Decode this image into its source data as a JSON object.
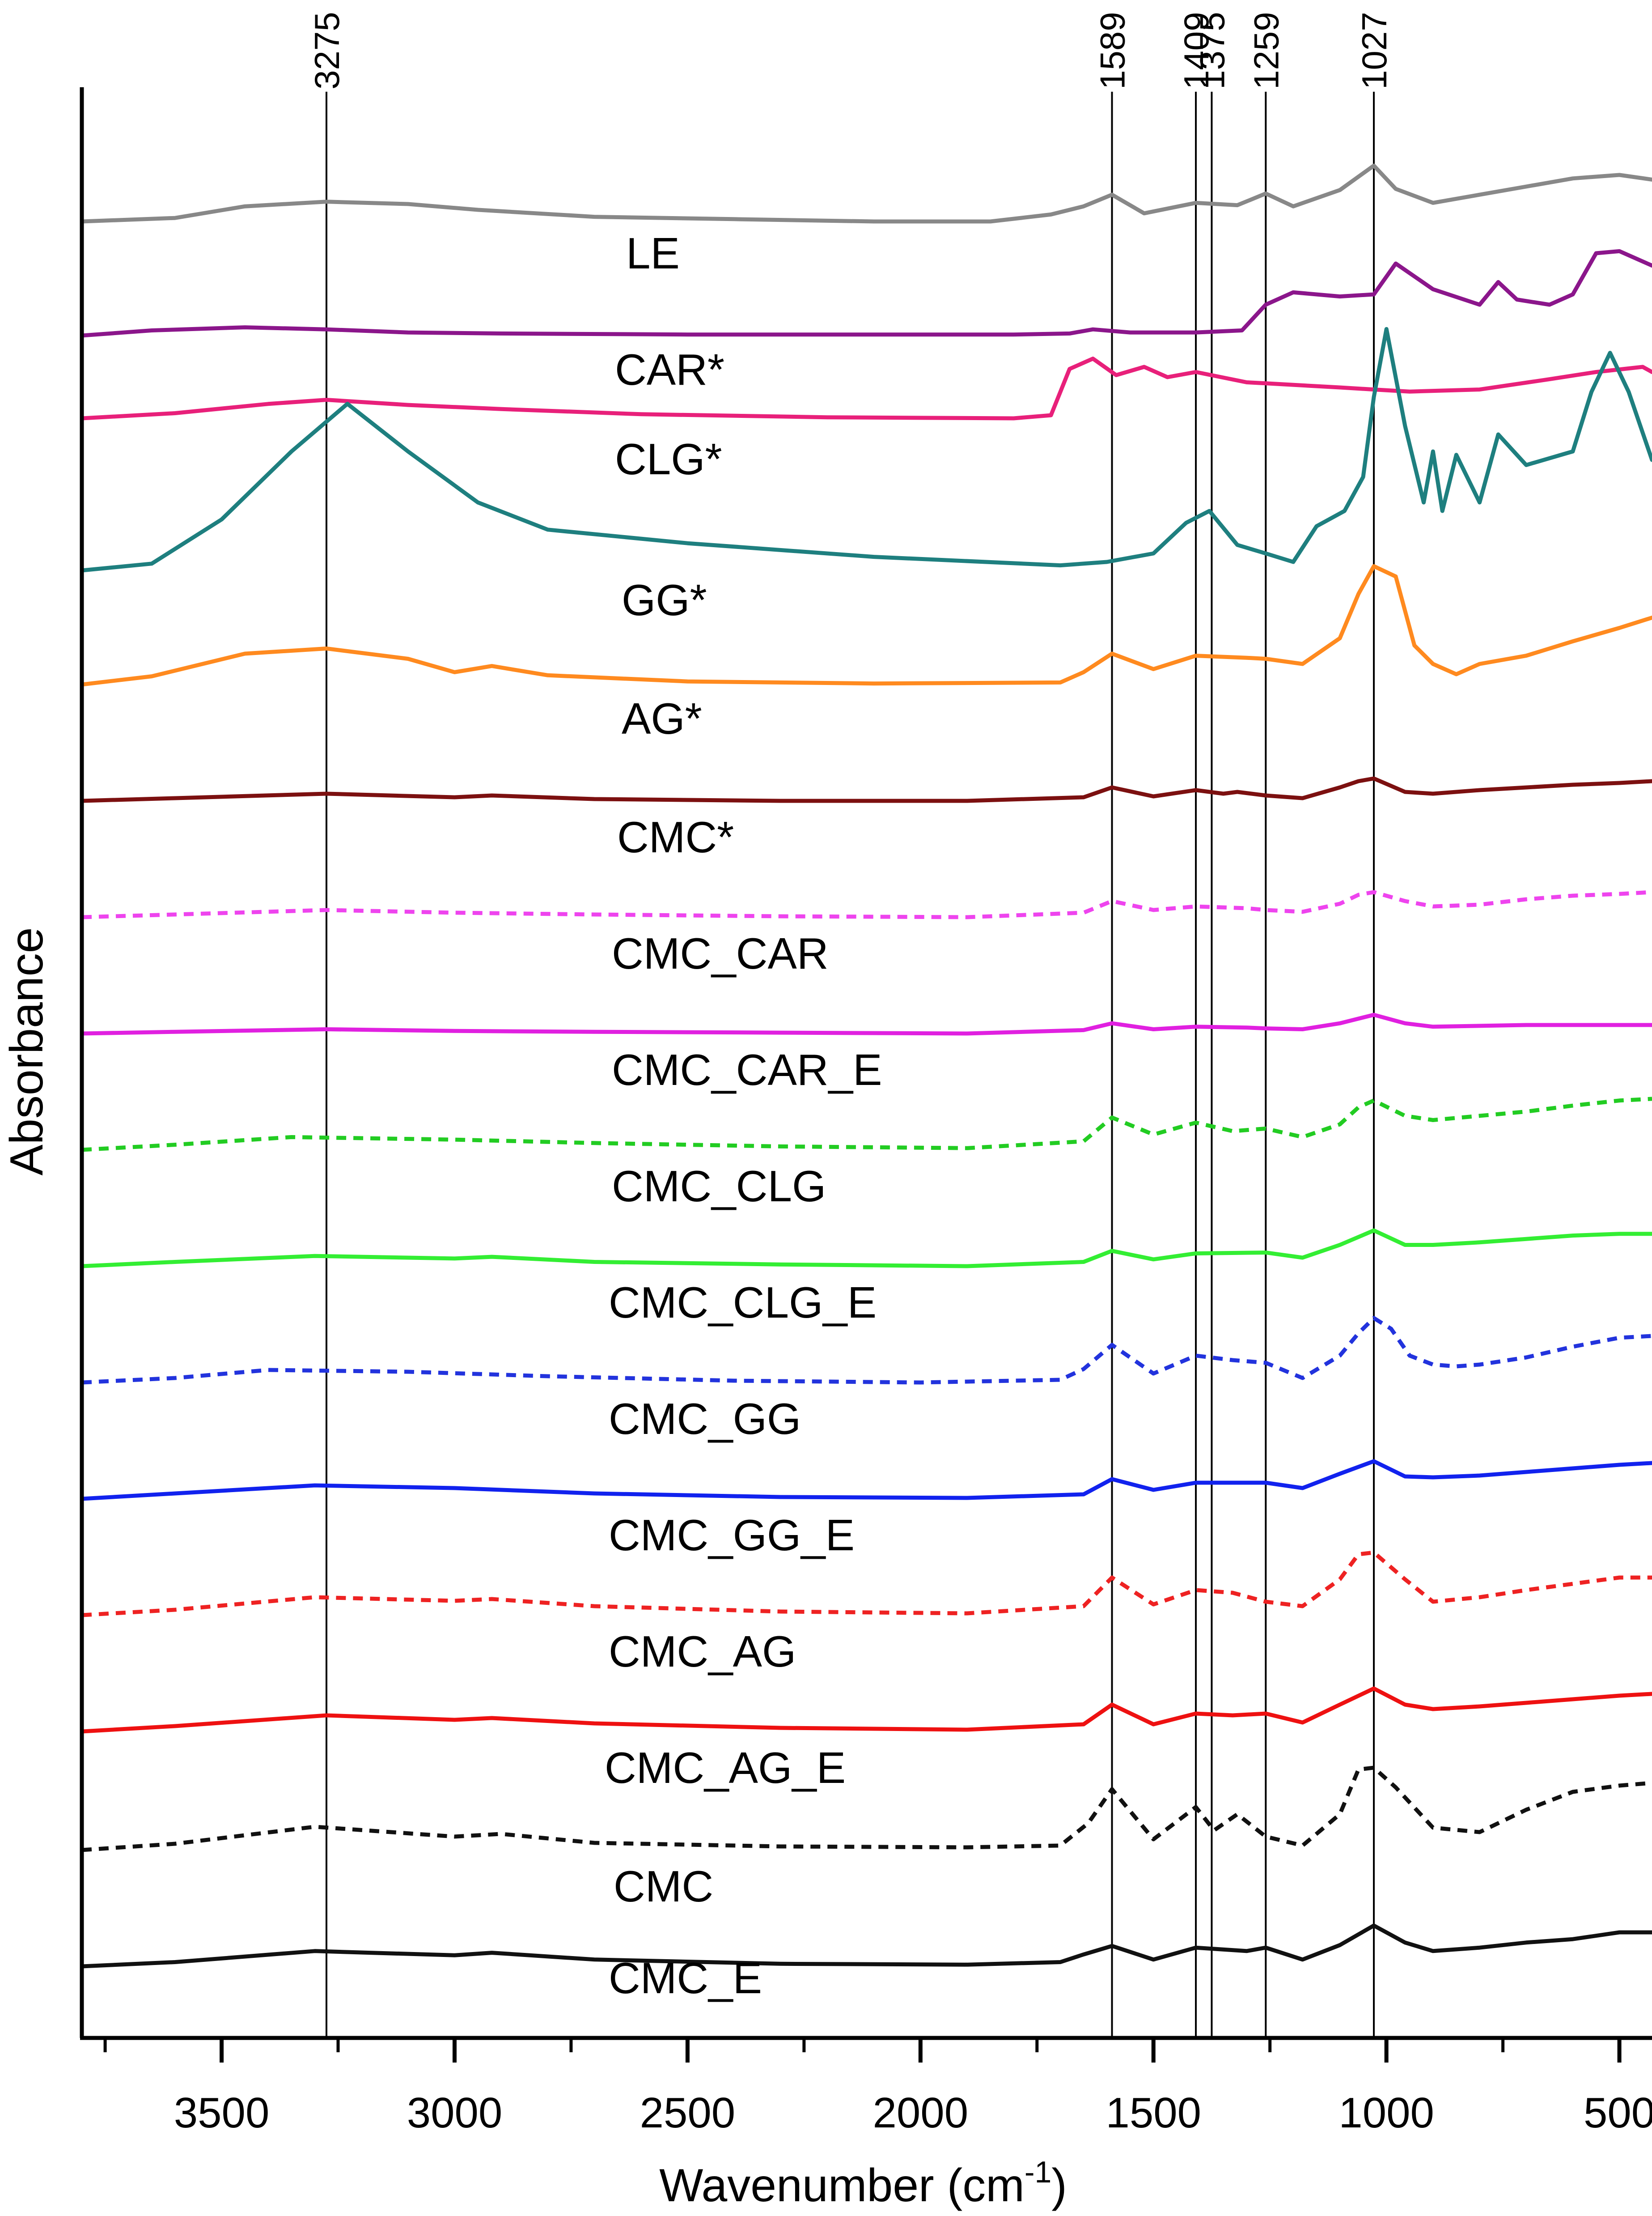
{
  "chart_data": {
    "type": "line",
    "title": "",
    "xlabel_main": "Wavenumber (cm",
    "xlabel_sup": "-1",
    "xlabel_close": ")",
    "ylabel": "Absorbance",
    "xlim": [
      3800,
      430
    ],
    "x_reversed": true,
    "grid": false,
    "legend": "none",
    "x_ticks": [
      {
        "value": 3500,
        "label": "3500"
      },
      {
        "value": 3000,
        "label": "3000"
      },
      {
        "value": 2500,
        "label": "2500"
      },
      {
        "value": 2000,
        "label": "2000"
      },
      {
        "value": 1500,
        "label": "1500"
      },
      {
        "value": 1000,
        "label": "1000"
      },
      {
        "value": 500,
        "label": "500"
      }
    ],
    "reference_lines": [
      {
        "value": 3275,
        "label": "3275"
      },
      {
        "value": 1589,
        "label": "1589"
      },
      {
        "value": 1409,
        "label": "1409"
      },
      {
        "value": 1375,
        "label": "1375"
      },
      {
        "value": 1259,
        "label": "1259"
      },
      {
        "value": 1027,
        "label": "1027"
      }
    ],
    "series": [
      {
        "name": "LE",
        "color": "#888888",
        "dash": false,
        "x": [
          3800,
          3600,
          3450,
          3275,
          3100,
          2950,
          2700,
          2400,
          2100,
          1850,
          1720,
          1650,
          1589,
          1520,
          1409,
          1320,
          1259,
          1200,
          1100,
          1027,
          980,
          900,
          800,
          700,
          600,
          500,
          430
        ],
        "y": [
          0.0,
          0.03,
          0.13,
          0.17,
          0.15,
          0.1,
          0.04,
          0.02,
          0.0,
          0.0,
          0.06,
          0.13,
          0.23,
          0.07,
          0.16,
          0.14,
          0.24,
          0.13,
          0.27,
          0.48,
          0.28,
          0.16,
          0.23,
          0.3,
          0.37,
          0.4,
          0.36
        ]
      },
      {
        "name": "CAR*",
        "color": "#8b168b",
        "dash": false,
        "x": [
          3800,
          3650,
          3450,
          3275,
          3100,
          2900,
          2500,
          2100,
          1800,
          1680,
          1630,
          1550,
          1409,
          1310,
          1259,
          1200,
          1100,
          1027,
          980,
          900,
          800,
          760,
          720,
          650,
          600,
          550,
          500,
          430
        ],
        "y": [
          0.0,
          0.05,
          0.08,
          0.06,
          0.03,
          0.02,
          0.01,
          0.01,
          0.01,
          0.02,
          0.06,
          0.03,
          0.03,
          0.05,
          0.3,
          0.42,
          0.38,
          0.4,
          0.7,
          0.45,
          0.3,
          0.52,
          0.35,
          0.3,
          0.4,
          0.8,
          0.82,
          0.68
        ]
      },
      {
        "name": "CLG*",
        "color": "#e8207a",
        "dash": false,
        "x": [
          3800,
          3600,
          3400,
          3275,
          3100,
          2900,
          2600,
          2200,
          1800,
          1720,
          1680,
          1630,
          1580,
          1520,
          1470,
          1409,
          1300,
          1259,
          1100,
          1027,
          950,
          800,
          650,
          550,
          450,
          430
        ],
        "y": [
          0.0,
          0.05,
          0.14,
          0.18,
          0.13,
          0.09,
          0.04,
          0.01,
          0.0,
          0.03,
          0.48,
          0.58,
          0.42,
          0.5,
          0.4,
          0.45,
          0.35,
          0.34,
          0.3,
          0.28,
          0.26,
          0.28,
          0.38,
          0.45,
          0.5,
          0.45
        ]
      },
      {
        "name": "GG*",
        "color": "#1e7f7f",
        "dash": false,
        "x": [
          3800,
          3650,
          3500,
          3350,
          3230,
          3100,
          2950,
          2800,
          2500,
          2100,
          1700,
          1600,
          1500,
          1430,
          1380,
          1320,
          1259,
          1200,
          1150,
          1090,
          1050,
          1027,
          1000,
          960,
          920,
          900,
          880,
          850,
          800,
          760,
          700,
          600,
          560,
          520,
          480,
          430
        ],
        "y": [
          0.0,
          0.04,
          0.3,
          0.7,
          0.98,
          0.7,
          0.4,
          0.24,
          0.16,
          0.08,
          0.03,
          0.05,
          0.1,
          0.28,
          0.35,
          0.15,
          0.1,
          0.05,
          0.26,
          0.35,
          0.55,
          1.02,
          1.42,
          0.85,
          0.4,
          0.7,
          0.35,
          0.68,
          0.4,
          0.8,
          0.62,
          0.7,
          1.05,
          1.28,
          1.05,
          0.65
        ]
      },
      {
        "name": "AG*",
        "color": "#ff8a1f",
        "dash": false,
        "x": [
          3800,
          3650,
          3450,
          3275,
          3100,
          3000,
          2920,
          2800,
          2500,
          2100,
          1700,
          1650,
          1589,
          1500,
          1409,
          1300,
          1259,
          1180,
          1100,
          1060,
          1027,
          980,
          940,
          900,
          850,
          800,
          700,
          600,
          500,
          430
        ],
        "y": [
          0.0,
          0.08,
          0.3,
          0.35,
          0.25,
          0.12,
          0.18,
          0.09,
          0.03,
          0.01,
          0.02,
          0.12,
          0.3,
          0.15,
          0.28,
          0.26,
          0.25,
          0.2,
          0.45,
          0.88,
          1.15,
          1.05,
          0.38,
          0.2,
          0.1,
          0.2,
          0.28,
          0.42,
          0.55,
          0.65
        ]
      },
      {
        "name": "CMC*",
        "color": "#7c1010",
        "dash": false,
        "x": [
          3800,
          3600,
          3275,
          3000,
          2920,
          2700,
          2300,
          1900,
          1650,
          1589,
          1500,
          1409,
          1350,
          1320,
          1259,
          1180,
          1100,
          1060,
          1027,
          960,
          900,
          800,
          700,
          600,
          500,
          430
        ],
        "y": [
          0.0,
          0.03,
          0.08,
          0.04,
          0.06,
          0.02,
          0.0,
          0.0,
          0.04,
          0.15,
          0.05,
          0.12,
          0.08,
          0.1,
          0.06,
          0.03,
          0.15,
          0.22,
          0.25,
          0.1,
          0.08,
          0.12,
          0.15,
          0.18,
          0.2,
          0.22
        ]
      },
      {
        "name": "CMC_CAR",
        "color": "#ee44ee",
        "dash": true,
        "x": [
          3800,
          3600,
          3275,
          3000,
          2700,
          2300,
          1900,
          1650,
          1589,
          1500,
          1409,
          1300,
          1259,
          1180,
          1100,
          1060,
          1027,
          960,
          900,
          800,
          700,
          600,
          500,
          430
        ],
        "y": [
          0.0,
          0.03,
          0.08,
          0.05,
          0.03,
          0.01,
          0.0,
          0.05,
          0.18,
          0.08,
          0.12,
          0.1,
          0.08,
          0.06,
          0.15,
          0.25,
          0.28,
          0.18,
          0.12,
          0.14,
          0.2,
          0.24,
          0.26,
          0.28
        ]
      },
      {
        "name": "CMC_CAR_E",
        "color": "#e020e0",
        "dash": false,
        "x": [
          3800,
          3600,
          3275,
          3000,
          2700,
          2300,
          1900,
          1650,
          1589,
          1500,
          1409,
          1300,
          1259,
          1180,
          1100,
          1027,
          960,
          900,
          800,
          700,
          600,
          500,
          430
        ],
        "y": [
          0.0,
          0.02,
          0.05,
          0.03,
          0.02,
          0.01,
          0.0,
          0.04,
          0.12,
          0.05,
          0.08,
          0.07,
          0.06,
          0.05,
          0.12,
          0.22,
          0.12,
          0.08,
          0.09,
          0.1,
          0.1,
          0.1,
          0.1
        ]
      },
      {
        "name": "CMC_CLG",
        "color": "#22cc22",
        "dash": true,
        "x": [
          3800,
          3600,
          3350,
          3000,
          2700,
          2300,
          1900,
          1650,
          1589,
          1500,
          1409,
          1330,
          1259,
          1180,
          1100,
          1060,
          1027,
          960,
          900,
          800,
          700,
          600,
          500,
          430
        ],
        "y": [
          0.0,
          0.06,
          0.15,
          0.12,
          0.08,
          0.04,
          0.02,
          0.1,
          0.38,
          0.18,
          0.32,
          0.22,
          0.25,
          0.15,
          0.3,
          0.5,
          0.58,
          0.4,
          0.35,
          0.4,
          0.45,
          0.52,
          0.58,
          0.6
        ]
      },
      {
        "name": "CMC_CLG_E",
        "color": "#33ee33",
        "dash": false,
        "x": [
          3800,
          3600,
          3300,
          3000,
          2920,
          2700,
          2300,
          1900,
          1650,
          1589,
          1500,
          1409,
          1259,
          1180,
          1100,
          1027,
          960,
          900,
          800,
          700,
          600,
          500,
          430
        ],
        "y": [
          0.0,
          0.05,
          0.12,
          0.09,
          0.11,
          0.05,
          0.02,
          0.0,
          0.05,
          0.18,
          0.08,
          0.15,
          0.16,
          0.1,
          0.25,
          0.42,
          0.25,
          0.25,
          0.28,
          0.32,
          0.36,
          0.38,
          0.38
        ]
      },
      {
        "name": "CMC_GG",
        "color": "#2233dd",
        "dash": true,
        "x": [
          3800,
          3600,
          3400,
          3100,
          2800,
          2400,
          2000,
          1700,
          1650,
          1589,
          1500,
          1409,
          1330,
          1259,
          1180,
          1100,
          1060,
          1027,
          990,
          950,
          900,
          850,
          800,
          700,
          600,
          500,
          430
        ],
        "y": [
          0.0,
          0.05,
          0.14,
          0.12,
          0.07,
          0.02,
          0.0,
          0.03,
          0.15,
          0.42,
          0.1,
          0.3,
          0.25,
          0.22,
          0.05,
          0.3,
          0.55,
          0.72,
          0.6,
          0.3,
          0.2,
          0.18,
          0.2,
          0.28,
          0.4,
          0.5,
          0.52
        ]
      },
      {
        "name": "CMC_GG_E",
        "color": "#1122ee",
        "dash": false,
        "x": [
          3800,
          3600,
          3300,
          3000,
          2700,
          2300,
          1900,
          1650,
          1589,
          1500,
          1409,
          1259,
          1180,
          1100,
          1027,
          960,
          900,
          800,
          700,
          600,
          500,
          430
        ],
        "y": [
          0.0,
          0.06,
          0.15,
          0.12,
          0.06,
          0.02,
          0.01,
          0.05,
          0.22,
          0.1,
          0.18,
          0.18,
          0.12,
          0.28,
          0.42,
          0.25,
          0.24,
          0.26,
          0.3,
          0.34,
          0.38,
          0.4
        ]
      },
      {
        "name": "CMC_AG",
        "color": "#ee2222",
        "dash": true,
        "x": [
          3800,
          3600,
          3300,
          3000,
          2920,
          2700,
          2300,
          1900,
          1650,
          1589,
          1500,
          1409,
          1330,
          1259,
          1180,
          1100,
          1060,
          1027,
          960,
          900,
          800,
          700,
          600,
          500,
          430
        ],
        "y": [
          0.0,
          0.06,
          0.2,
          0.16,
          0.18,
          0.1,
          0.04,
          0.02,
          0.1,
          0.42,
          0.12,
          0.28,
          0.25,
          0.15,
          0.1,
          0.4,
          0.68,
          0.7,
          0.4,
          0.15,
          0.2,
          0.28,
          0.35,
          0.42,
          0.42
        ]
      },
      {
        "name": "CMC_AG_E",
        "color": "#ee1111",
        "dash": false,
        "x": [
          3800,
          3600,
          3275,
          3000,
          2920,
          2700,
          2300,
          1900,
          1650,
          1589,
          1500,
          1409,
          1330,
          1259,
          1180,
          1100,
          1027,
          960,
          900,
          800,
          700,
          600,
          500,
          430
        ],
        "y": [
          0.0,
          0.06,
          0.18,
          0.13,
          0.15,
          0.09,
          0.04,
          0.02,
          0.08,
          0.3,
          0.08,
          0.2,
          0.18,
          0.2,
          0.1,
          0.3,
          0.48,
          0.3,
          0.25,
          0.28,
          0.32,
          0.36,
          0.4,
          0.42
        ]
      },
      {
        "name": "CMC",
        "color": "#111111",
        "dash": true,
        "x": [
          3800,
          3600,
          3300,
          3000,
          2900,
          2700,
          2300,
          1900,
          1700,
          1640,
          1589,
          1500,
          1409,
          1370,
          1320,
          1259,
          1180,
          1100,
          1060,
          1027,
          980,
          900,
          800,
          700,
          600,
          500,
          430
        ],
        "y": [
          0.0,
          0.07,
          0.26,
          0.15,
          0.18,
          0.08,
          0.04,
          0.03,
          0.05,
          0.3,
          0.68,
          0.12,
          0.48,
          0.22,
          0.4,
          0.15,
          0.05,
          0.4,
          0.9,
          0.92,
          0.7,
          0.25,
          0.2,
          0.45,
          0.65,
          0.72,
          0.75
        ]
      },
      {
        "name": "CMC_E",
        "color": "#111111",
        "dash": false,
        "x": [
          3800,
          3600,
          3300,
          3000,
          2920,
          2700,
          2300,
          1900,
          1700,
          1650,
          1589,
          1500,
          1409,
          1300,
          1259,
          1180,
          1100,
          1027,
          960,
          900,
          800,
          700,
          600,
          500,
          430
        ],
        "y": [
          0.0,
          0.05,
          0.18,
          0.13,
          0.16,
          0.08,
          0.03,
          0.02,
          0.05,
          0.14,
          0.24,
          0.08,
          0.22,
          0.18,
          0.22,
          0.08,
          0.25,
          0.48,
          0.28,
          0.18,
          0.22,
          0.28,
          0.32,
          0.4,
          0.4
        ]
      }
    ]
  }
}
